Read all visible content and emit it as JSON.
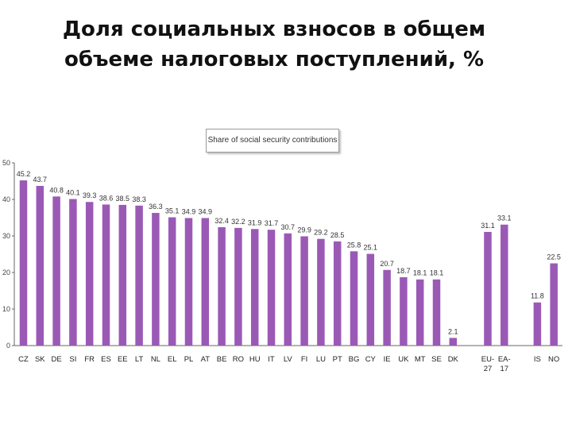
{
  "slide": {
    "title_line1": "Доля социальных взносов в общем",
    "title_line2": "объеме налоговых поступлений, %"
  },
  "colors": {
    "bar": "#9b59b6",
    "axis": "#666666"
  },
  "chart_data": {
    "type": "bar",
    "title": "",
    "legend": "Share of social security contributions",
    "legend_position": "top-center",
    "ylim": [
      0,
      50
    ],
    "yticks": [
      0,
      10,
      20,
      30,
      40,
      50
    ],
    "grid": false,
    "categories": [
      "CZ",
      "SK",
      "DE",
      "SI",
      "FR",
      "ES",
      "EE",
      "LT",
      "NL",
      "EL",
      "PL",
      "AT",
      "BE",
      "RO",
      "HU",
      "IT",
      "LV",
      "FI",
      "LU",
      "PT",
      "BG",
      "CY",
      "IE",
      "UK",
      "MT",
      "SE",
      "DK",
      "EU-27",
      "EA-17",
      "IS",
      "NO"
    ],
    "values": [
      45.2,
      43.7,
      40.8,
      40.1,
      39.3,
      38.6,
      38.5,
      38.3,
      36.3,
      35.1,
      34.9,
      34.9,
      32.4,
      32.2,
      31.9,
      31.7,
      30.7,
      29.9,
      29.2,
      28.5,
      25.8,
      25.1,
      20.7,
      18.7,
      18.1,
      18.1,
      2.1,
      31.1,
      33.1,
      11.8,
      22.5
    ],
    "value_labels": [
      "45.2",
      "43.7",
      "40.8",
      "40.1",
      "39.3",
      "38.6",
      "38.5",
      "38.3",
      "36.3",
      "35.1",
      "34.9",
      "34.9",
      "32.4",
      "32.2",
      "31.9",
      "31.7",
      "30.7",
      "29.9",
      "29.2",
      "28.5",
      "25.8",
      "25.1",
      "20.7",
      "18.7",
      "18.1",
      "18.1",
      "2.1",
      "31.1",
      "33.1",
      "11.8",
      "22.5"
    ]
  }
}
